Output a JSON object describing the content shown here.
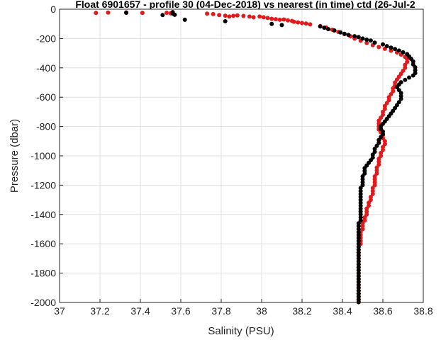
{
  "chart_data": {
    "type": "scatter",
    "title": "Float 6901657 - profile 30 (04-Dec-2018) vs nearest (in time) ctd (26-Jul-2",
    "xlabel": "Salinity (PSU)",
    "ylabel": "Pressure (dbar)",
    "xlim": [
      37,
      38.8
    ],
    "ylim": [
      -2000,
      0
    ],
    "x_ticks": [
      "37",
      "37.2",
      "37.4",
      "37.6",
      "37.8",
      "38",
      "38.2",
      "38.4",
      "38.6",
      "38.8"
    ],
    "y_ticks": [
      "0",
      "-200",
      "-400",
      "-600",
      "-800",
      "-1000",
      "-1200",
      "-1400",
      "-1600",
      "-1800",
      "-2000"
    ],
    "grid": true,
    "colors": {
      "series_red": "#e31a1c",
      "series_black": "#000000",
      "grid": "#e0e0e0",
      "axis": "#262626"
    },
    "series": [
      {
        "color": "red",
        "points": [
          [
            37.18,
            -25
          ],
          [
            37.24,
            -23
          ],
          [
            37.33,
            -22
          ],
          [
            37.41,
            -25
          ],
          [
            37.53,
            -24
          ],
          [
            37.55,
            -28
          ],
          [
            37.73,
            -30
          ],
          [
            37.76,
            -33
          ],
          [
            37.79,
            -40
          ],
          [
            37.82,
            -44
          ],
          [
            37.84,
            -50
          ],
          [
            37.86,
            -45
          ],
          [
            37.88,
            -42
          ],
          [
            37.91,
            -46
          ],
          [
            37.94,
            -50
          ],
          [
            37.96,
            -55
          ],
          [
            37.99,
            -50
          ],
          [
            38.01,
            -55
          ],
          [
            38.03,
            -60
          ],
          [
            38.05,
            -65
          ],
          [
            38.07,
            -68
          ],
          [
            38.09,
            -72
          ],
          [
            38.11,
            -70
          ],
          [
            38.13,
            -76
          ],
          [
            38.15,
            -80
          ],
          [
            38.16,
            -86
          ],
          [
            38.18,
            -90
          ],
          [
            38.2,
            -94
          ],
          [
            38.22,
            -98
          ],
          [
            38.24,
            -103
          ],
          [
            38.29,
            -115
          ],
          [
            38.32,
            -125
          ],
          [
            38.35,
            -140
          ],
          [
            38.38,
            -155
          ],
          [
            38.41,
            -170
          ],
          [
            38.44,
            -185
          ],
          [
            38.46,
            -200
          ],
          [
            38.49,
            -215
          ],
          [
            38.52,
            -230
          ],
          [
            38.55,
            -245
          ],
          [
            38.58,
            -258
          ],
          [
            38.61,
            -270
          ],
          [
            38.64,
            -283
          ],
          [
            38.67,
            -295
          ],
          [
            38.69,
            -310
          ],
          [
            38.71,
            -325
          ],
          [
            38.72,
            -340
          ],
          [
            38.72,
            -360
          ],
          [
            38.71,
            -380
          ],
          [
            38.71,
            -400
          ],
          [
            38.7,
            -420
          ],
          [
            38.69,
            -440
          ],
          [
            38.68,
            -460
          ],
          [
            38.67,
            -480
          ],
          [
            38.66,
            -500
          ],
          [
            38.66,
            -520
          ],
          [
            38.65,
            -540
          ],
          [
            38.65,
            -560
          ],
          [
            38.64,
            -580
          ],
          [
            38.63,
            -600
          ],
          [
            38.63,
            -620
          ],
          [
            38.62,
            -640
          ],
          [
            38.61,
            -660
          ],
          [
            38.61,
            -680
          ],
          [
            38.6,
            -700
          ],
          [
            38.6,
            -720
          ],
          [
            38.59,
            -740
          ],
          [
            38.58,
            -760
          ],
          [
            38.58,
            -780
          ],
          [
            38.58,
            -800
          ],
          [
            38.58,
            -820
          ],
          [
            38.59,
            -840
          ],
          [
            38.6,
            -860
          ],
          [
            38.6,
            -880
          ],
          [
            38.61,
            -900
          ],
          [
            38.61,
            -920
          ],
          [
            38.6,
            -940
          ],
          [
            38.6,
            -960
          ],
          [
            38.59,
            -980
          ],
          [
            38.59,
            -1000
          ],
          [
            38.58,
            -1020
          ],
          [
            38.58,
            -1040
          ],
          [
            38.58,
            -1060
          ],
          [
            38.57,
            -1080
          ],
          [
            38.57,
            -1100
          ],
          [
            38.57,
            -1120
          ],
          [
            38.56,
            -1140
          ],
          [
            38.56,
            -1160
          ],
          [
            38.56,
            -1180
          ],
          [
            38.56,
            -1200
          ],
          [
            38.55,
            -1220
          ],
          [
            38.55,
            -1240
          ],
          [
            38.55,
            -1260
          ],
          [
            38.54,
            -1280
          ],
          [
            38.54,
            -1300
          ],
          [
            38.53,
            -1320
          ],
          [
            38.53,
            -1340
          ],
          [
            38.52,
            -1360
          ],
          [
            38.52,
            -1380
          ],
          [
            38.52,
            -1400
          ],
          [
            38.51,
            -1420
          ],
          [
            38.51,
            -1440
          ],
          [
            38.5,
            -1460
          ],
          [
            38.5,
            -1480
          ],
          [
            38.5,
            -1500
          ],
          [
            38.49,
            -1520
          ],
          [
            38.49,
            -1540
          ],
          [
            38.49,
            -1560
          ],
          [
            38.49,
            -1580
          ],
          [
            38.49,
            -1600
          ],
          [
            38.48,
            -1620
          ],
          [
            38.48,
            -1640
          ],
          [
            38.48,
            -1660
          ],
          [
            38.48,
            -1680
          ],
          [
            38.48,
            -1700
          ],
          [
            38.48,
            -1720
          ],
          [
            38.48,
            -1740
          ],
          [
            38.48,
            -1760
          ],
          [
            38.48,
            -1780
          ],
          [
            38.48,
            -1800
          ],
          [
            38.48,
            -1820
          ],
          [
            38.48,
            -1840
          ],
          [
            38.48,
            -1860
          ],
          [
            38.48,
            -1880
          ],
          [
            38.48,
            -1900
          ],
          [
            38.48,
            -1920
          ],
          [
            38.48,
            -1940
          ],
          [
            38.48,
            -1960
          ],
          [
            38.48,
            -1980
          ],
          [
            38.48,
            -1995
          ]
        ]
      },
      {
        "color": "black",
        "points": [
          [
            37.33,
            -24
          ],
          [
            37.51,
            -40
          ],
          [
            37.56,
            -20
          ],
          [
            37.56,
            -30
          ],
          [
            37.57,
            -38
          ],
          [
            37.62,
            -72
          ],
          [
            37.82,
            -82
          ],
          [
            38.05,
            -100
          ],
          [
            38.1,
            -108
          ],
          [
            38.29,
            -118
          ],
          [
            38.31,
            -126
          ],
          [
            38.33,
            -136
          ],
          [
            38.36,
            -145
          ],
          [
            38.39,
            -158
          ],
          [
            38.41,
            -168
          ],
          [
            38.43,
            -176
          ],
          [
            38.46,
            -184
          ],
          [
            38.48,
            -190
          ],
          [
            38.5,
            -200
          ],
          [
            38.52,
            -208
          ],
          [
            38.54,
            -214
          ],
          [
            38.56,
            -228
          ],
          [
            38.6,
            -240
          ],
          [
            38.62,
            -252
          ],
          [
            38.64,
            -262
          ],
          [
            38.66,
            -272
          ],
          [
            38.68,
            -282
          ],
          [
            38.7,
            -294
          ],
          [
            38.72,
            -306
          ],
          [
            38.73,
            -322
          ],
          [
            38.74,
            -338
          ],
          [
            38.75,
            -356
          ],
          [
            38.75,
            -376
          ],
          [
            38.76,
            -396
          ],
          [
            38.76,
            -416
          ],
          [
            38.76,
            -436
          ],
          [
            38.75,
            -452
          ],
          [
            38.73,
            -466
          ],
          [
            38.71,
            -482
          ],
          [
            38.69,
            -498
          ],
          [
            38.68,
            -514
          ],
          [
            38.67,
            -532
          ],
          [
            38.68,
            -552
          ],
          [
            38.69,
            -572
          ],
          [
            38.69,
            -592
          ],
          [
            38.69,
            -612
          ],
          [
            38.68,
            -634
          ],
          [
            38.67,
            -654
          ],
          [
            38.66,
            -674
          ],
          [
            38.65,
            -694
          ],
          [
            38.64,
            -712
          ],
          [
            38.63,
            -730
          ],
          [
            38.62,
            -748
          ],
          [
            38.61,
            -766
          ],
          [
            38.6,
            -782
          ],
          [
            38.59,
            -798
          ],
          [
            38.59,
            -816
          ],
          [
            38.6,
            -834
          ],
          [
            38.6,
            -852
          ],
          [
            38.59,
            -872
          ],
          [
            38.58,
            -892
          ],
          [
            38.58,
            -912
          ],
          [
            38.57,
            -932
          ],
          [
            38.56,
            -952
          ],
          [
            38.56,
            -972
          ],
          [
            38.55,
            -992
          ],
          [
            38.55,
            -1012
          ],
          [
            38.54,
            -1030
          ],
          [
            38.53,
            -1048
          ],
          [
            38.52,
            -1066
          ],
          [
            38.51,
            -1084
          ],
          [
            38.51,
            -1102
          ],
          [
            38.51,
            -1120
          ],
          [
            38.5,
            -1140
          ],
          [
            38.5,
            -1160
          ],
          [
            38.5,
            -1180
          ],
          [
            38.5,
            -1200
          ],
          [
            38.49,
            -1220
          ],
          [
            38.49,
            -1240
          ],
          [
            38.49,
            -1260
          ],
          [
            38.49,
            -1280
          ],
          [
            38.49,
            -1300
          ],
          [
            38.49,
            -1320
          ],
          [
            38.49,
            -1340
          ],
          [
            38.49,
            -1360
          ],
          [
            38.49,
            -1380
          ],
          [
            38.49,
            -1400
          ],
          [
            38.49,
            -1420
          ],
          [
            38.49,
            -1440
          ],
          [
            38.48,
            -1460
          ],
          [
            38.48,
            -1480
          ],
          [
            38.48,
            -1500
          ],
          [
            38.48,
            -1520
          ],
          [
            38.48,
            -1540
          ],
          [
            38.48,
            -1560
          ],
          [
            38.48,
            -1580
          ],
          [
            38.48,
            -1600
          ],
          [
            38.48,
            -1620
          ],
          [
            38.48,
            -1640
          ],
          [
            38.48,
            -1660
          ],
          [
            38.48,
            -1680
          ],
          [
            38.48,
            -1700
          ],
          [
            38.48,
            -1720
          ],
          [
            38.48,
            -1740
          ],
          [
            38.48,
            -1760
          ],
          [
            38.48,
            -1780
          ],
          [
            38.48,
            -1800
          ],
          [
            38.48,
            -1820
          ],
          [
            38.48,
            -1840
          ],
          [
            38.48,
            -1860
          ],
          [
            38.48,
            -1880
          ],
          [
            38.48,
            -1900
          ],
          [
            38.48,
            -1920
          ],
          [
            38.48,
            -1940
          ],
          [
            38.48,
            -1960
          ],
          [
            38.48,
            -1980
          ],
          [
            38.48,
            -1998
          ]
        ]
      }
    ]
  }
}
